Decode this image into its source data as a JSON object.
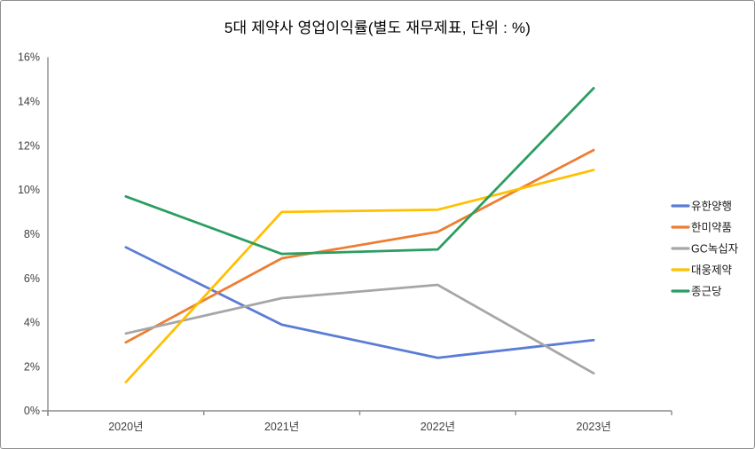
{
  "chart_data": {
    "type": "line",
    "title": "5대 제약사 영업이익률(별도 재무제표, 단위 : %)",
    "categories": [
      "2020년",
      "2021년",
      "2022년",
      "2023년"
    ],
    "series": [
      {
        "name": "유한양행",
        "color": "#5b7cd5",
        "values": [
          7.4,
          3.9,
          2.4,
          3.2
        ]
      },
      {
        "name": "한미약품",
        "color": "#ed7d31",
        "values": [
          3.1,
          6.9,
          8.1,
          11.8
        ]
      },
      {
        "name": "GC녹십자",
        "color": "#a6a6a6",
        "values": [
          3.5,
          5.1,
          5.7,
          1.7
        ]
      },
      {
        "name": "대웅제약",
        "color": "#ffc000",
        "values": [
          1.3,
          9.0,
          9.1,
          10.9
        ]
      },
      {
        "name": "종근당",
        "color": "#2a9d61",
        "values": [
          9.7,
          7.1,
          7.3,
          14.6
        ]
      }
    ],
    "xlabel": "",
    "ylabel": "",
    "ylim": [
      0,
      16
    ],
    "ytick_step": 2,
    "ytick_suffix": "%",
    "yticklabels": [
      "0%",
      "2%",
      "4%",
      "6%",
      "8%",
      "10%",
      "12%",
      "14%",
      "16%"
    ],
    "grid": false,
    "legend_position": "right",
    "legend_entries": [
      "유한양행",
      "한미약품",
      "GC녹십자",
      "대웅제약",
      "종근당"
    ],
    "axis_color": "#8c8c8c",
    "label_color": "#404040",
    "background_color": "#ffffff",
    "border_color": "#8f8f8f"
  }
}
